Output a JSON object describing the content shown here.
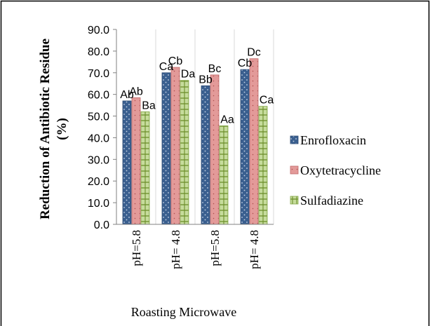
{
  "chart_data": {
    "type": "bar",
    "categories": [
      "pH=5.8",
      "pH= 4.8",
      "pH=5.8",
      "pH= 4.8"
    ],
    "xlabel": "Roasting Microwave",
    "ylabel": "Reduction of Antibiotic Residue (%)",
    "ylabel_lines": [
      "Reduction of Antibiotic Residue",
      "(%)"
    ],
    "ylim": [
      0,
      90
    ],
    "yticks": [
      "0.0",
      "10.0",
      "20.0",
      "30.0",
      "40.0",
      "50.0",
      "60.0",
      "70.0",
      "80.0",
      "90.0"
    ],
    "grid": true,
    "legend_position": "right",
    "series": [
      {
        "name": "Enrofloxacin",
        "color": "#2f4f7f",
        "values": [
          57.0,
          70.0,
          64.0,
          71.5
        ],
        "labels": [
          "Ab",
          "Ca",
          "Bb",
          "Cb"
        ]
      },
      {
        "name": "Oxytetracycline",
        "color": "#d47f7f",
        "values": [
          58.5,
          72.5,
          69.0,
          76.5
        ],
        "labels": [
          "Ab",
          "Cb",
          "Bc",
          "Dc"
        ]
      },
      {
        "name": "Sulfadiazine",
        "color": "#9bbb59",
        "values": [
          52.0,
          66.5,
          45.5,
          54.5
        ],
        "labels": [
          "Ba",
          "Da",
          "Aa",
          "Ca"
        ]
      }
    ]
  }
}
